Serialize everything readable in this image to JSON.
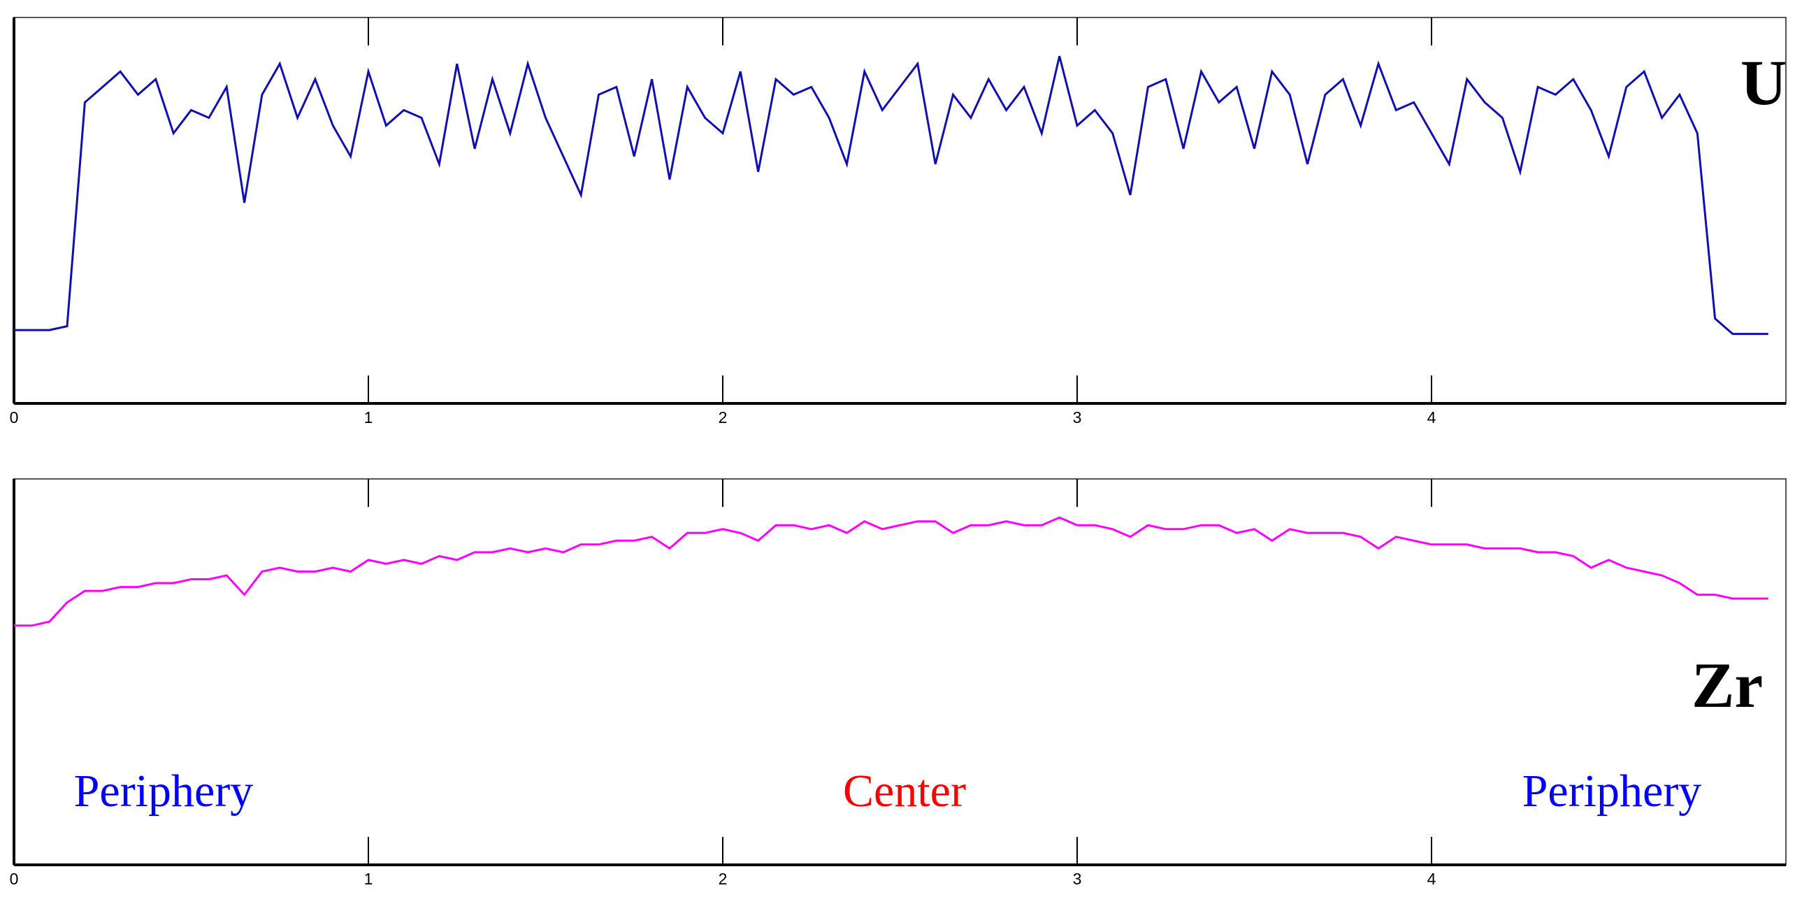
{
  "chart_data": [
    {
      "type": "line",
      "x": [
        0,
        0.05,
        0.1,
        0.15,
        0.2,
        0.25,
        0.3,
        0.35,
        0.4,
        0.45,
        0.5,
        0.55,
        0.6,
        0.65,
        0.7,
        0.75,
        0.8,
        0.85,
        0.9,
        0.95,
        1,
        1.05,
        1.1,
        1.15,
        1.2,
        1.25,
        1.3,
        1.35,
        1.4,
        1.45,
        1.5,
        1.55,
        1.6,
        1.65,
        1.7,
        1.75,
        1.8,
        1.85,
        1.9,
        1.95,
        2,
        2.05,
        2.1,
        2.15,
        2.2,
        2.25,
        2.3,
        2.35,
        2.4,
        2.45,
        2.5,
        2.55,
        2.6,
        2.65,
        2.7,
        2.75,
        2.8,
        2.85,
        2.9,
        2.95,
        3,
        3.05,
        3.1,
        3.15,
        3.2,
        3.25,
        3.3,
        3.35,
        3.4,
        3.45,
        3.5,
        3.55,
        3.6,
        3.65,
        3.7,
        3.75,
        3.8,
        3.85,
        3.9,
        3.95,
        4,
        4.05,
        4.1,
        4.15,
        4.2,
        4.25,
        4.3,
        4.35,
        4.4,
        4.45,
        4.5,
        4.55,
        4.6,
        4.65,
        4.7,
        4.75,
        4.8,
        4.85,
        4.9,
        4.95
      ],
      "series": [
        {
          "name": "U",
          "color": "#1010b0",
          "values": [
            19,
            19,
            19,
            20,
            78,
            82,
            86,
            80,
            84,
            70,
            76,
            74,
            82,
            52,
            80,
            88,
            74,
            84,
            72,
            64,
            86,
            72,
            76,
            74,
            62,
            88,
            66,
            84,
            70,
            88,
            74,
            64,
            54,
            80,
            82,
            64,
            84,
            58,
            82,
            74,
            70,
            86,
            60,
            84,
            80,
            82,
            74,
            62,
            86,
            76,
            82,
            88,
            62,
            80,
            74,
            84,
            76,
            82,
            70,
            90,
            72,
            76,
            70,
            54,
            82,
            84,
            66,
            86,
            78,
            82,
            66,
            86,
            80,
            62,
            80,
            84,
            72,
            88,
            76,
            78,
            70,
            62,
            84,
            78,
            74,
            60,
            82,
            80,
            84,
            76,
            64,
            82,
            86,
            74,
            80,
            70,
            22,
            18,
            18,
            18
          ]
        }
      ],
      "xlim": [
        0,
        5
      ],
      "xticks": [
        0,
        1,
        2,
        3,
        4
      ],
      "ylim": [
        0,
        100
      ]
    },
    {
      "type": "line",
      "x": [
        0,
        0.05,
        0.1,
        0.15,
        0.2,
        0.25,
        0.3,
        0.35,
        0.4,
        0.45,
        0.5,
        0.55,
        0.6,
        0.65,
        0.7,
        0.75,
        0.8,
        0.85,
        0.9,
        0.95,
        1,
        1.05,
        1.1,
        1.15,
        1.2,
        1.25,
        1.3,
        1.35,
        1.4,
        1.45,
        1.5,
        1.55,
        1.6,
        1.65,
        1.7,
        1.75,
        1.8,
        1.85,
        1.9,
        1.95,
        2,
        2.05,
        2.1,
        2.15,
        2.2,
        2.25,
        2.3,
        2.35,
        2.4,
        2.45,
        2.5,
        2.55,
        2.6,
        2.65,
        2.7,
        2.75,
        2.8,
        2.85,
        2.9,
        2.95,
        3,
        3.05,
        3.1,
        3.15,
        3.2,
        3.25,
        3.3,
        3.35,
        3.4,
        3.45,
        3.5,
        3.55,
        3.6,
        3.65,
        3.7,
        3.75,
        3.8,
        3.85,
        3.9,
        3.95,
        4,
        4.05,
        4.1,
        4.15,
        4.2,
        4.25,
        4.3,
        4.35,
        4.4,
        4.45,
        4.5,
        4.55,
        4.6,
        4.65,
        4.7,
        4.75,
        4.8,
        4.85,
        4.9,
        4.95
      ],
      "series": [
        {
          "name": "Zr",
          "color": "#ff00ff",
          "values": [
            62,
            62,
            63,
            68,
            71,
            71,
            72,
            72,
            73,
            73,
            74,
            74,
            75,
            70,
            76,
            77,
            76,
            76,
            77,
            76,
            79,
            78,
            79,
            78,
            80,
            79,
            81,
            81,
            82,
            81,
            82,
            81,
            83,
            83,
            84,
            84,
            85,
            82,
            86,
            86,
            87,
            86,
            84,
            88,
            88,
            87,
            88,
            86,
            89,
            87,
            88,
            89,
            89,
            86,
            88,
            88,
            89,
            88,
            88,
            90,
            88,
            88,
            87,
            85,
            88,
            87,
            87,
            88,
            88,
            86,
            87,
            84,
            87,
            86,
            86,
            86,
            85,
            82,
            85,
            84,
            83,
            83,
            83,
            82,
            82,
            82,
            81,
            81,
            80,
            77,
            79,
            77,
            76,
            75,
            73,
            70,
            70,
            69,
            69,
            69
          ]
        }
      ],
      "xlim": [
        0,
        5
      ],
      "xticks": [
        0,
        1,
        2,
        3,
        4
      ],
      "ylim": [
        0,
        100
      ],
      "annotations": [
        {
          "text": "Periphery",
          "color": "#0000ff"
        },
        {
          "text": "Center",
          "color": "#ff0000"
        },
        {
          "text": "Periphery",
          "color": "#0000ff"
        }
      ]
    }
  ]
}
